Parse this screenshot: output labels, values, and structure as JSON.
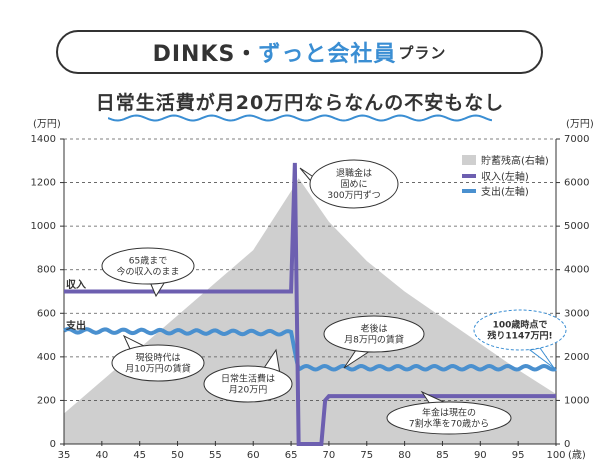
{
  "header": {
    "prefix": "DINKS・",
    "highlight": "ずっと会社員",
    "suffix": "プラン"
  },
  "subtitle": "日常生活費が月20万円ならなんの不安もなし",
  "colors": {
    "income": "#6d5fb0",
    "expense": "#4a90cf",
    "savings": "#cfcfcf",
    "accent": "#3a8ed3"
  },
  "chart_data": {
    "type": "line+area",
    "left_unit": "(万円)",
    "right_unit": "(万円)",
    "x_unit": "(歳)",
    "x_ticks": [
      35,
      40,
      45,
      50,
      55,
      60,
      65,
      70,
      75,
      80,
      85,
      90,
      95,
      100
    ],
    "left_ticks": [
      0,
      200,
      400,
      600,
      800,
      1000,
      1200,
      1400
    ],
    "right_ticks": [
      0,
      1000,
      2000,
      3000,
      4000,
      5000,
      6000,
      7000
    ],
    "xlim": [
      35,
      100
    ],
    "ylim_left": [
      0,
      1400
    ],
    "ylim_right": [
      0,
      7000
    ],
    "grid": true,
    "legend_position": "top-right",
    "legend": [
      {
        "key": "savings",
        "label": "貯蓄残高(右軸)"
      },
      {
        "key": "income",
        "label": "収入(左軸)"
      },
      {
        "key": "expense",
        "label": "支出(左軸)"
      }
    ],
    "series": [
      {
        "name": "貯蓄残高(右軸)",
        "axis": "right",
        "type": "area",
        "x": [
          35,
          40,
          45,
          50,
          55,
          60,
          65,
          66,
          70,
          75,
          80,
          85,
          90,
          95,
          100
        ],
        "y": [
          700,
          1450,
          2200,
          2950,
          3700,
          4450,
          5800,
          6100,
          5100,
          4200,
          3500,
          2900,
          2300,
          1700,
          1147
        ]
      },
      {
        "name": "収入(左軸)",
        "axis": "left",
        "type": "step",
        "x": [
          35,
          65,
          65.5,
          66,
          69,
          69.5,
          70,
          100
        ],
        "y": [
          700,
          700,
          1290,
          0,
          0,
          200,
          220,
          220
        ]
      },
      {
        "name": "支出(左軸)",
        "axis": "left",
        "type": "wavy",
        "x": [
          35,
          65,
          66,
          100
        ],
        "y": [
          520,
          510,
          350,
          350
        ]
      }
    ],
    "annotations": [
      {
        "id": "retirement",
        "lines": [
          "退職金は",
          "固めに",
          "300万円ずつ"
        ]
      },
      {
        "id": "keep-income",
        "lines": [
          "65歳まで",
          "今の収入のまま"
        ]
      },
      {
        "id": "work-rent",
        "lines": [
          "現役時代は",
          "月10万円の賃貸"
        ]
      },
      {
        "id": "living",
        "lines": [
          "日常生活費は",
          "月20万円"
        ]
      },
      {
        "id": "old-rent",
        "lines": [
          "老後は",
          "月8万円の賃貸"
        ]
      },
      {
        "id": "pension",
        "lines": [
          "年金は現在の",
          "7割水準を70歳から"
        ]
      },
      {
        "id": "remaining",
        "lines": [
          "100歳時点で",
          "残り1147万円!"
        ]
      }
    ],
    "series_labels": {
      "income": "収入",
      "expense": "支出"
    }
  }
}
